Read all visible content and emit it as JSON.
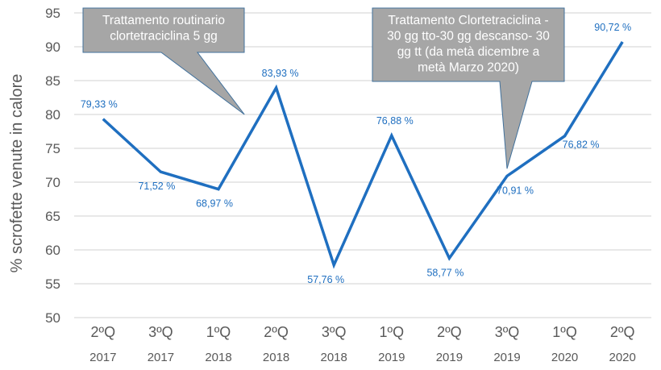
{
  "chart_data": {
    "type": "line",
    "title": "",
    "ylabel": "%  scrofette venute in calore",
    "xlabel": "",
    "ylim": [
      50,
      95
    ],
    "yticks": [
      50,
      55,
      60,
      65,
      70,
      75,
      80,
      85,
      90,
      95
    ],
    "grid": true,
    "categories": [
      {
        "q": "2ºQ",
        "year": "2017"
      },
      {
        "q": "3ºQ",
        "year": "2017"
      },
      {
        "q": "1ºQ",
        "year": "2018"
      },
      {
        "q": "2ºQ",
        "year": "2018"
      },
      {
        "q": "3ºQ",
        "year": "2018"
      },
      {
        "q": "1ºQ",
        "year": "2019"
      },
      {
        "q": "2ºQ",
        "year": "2019"
      },
      {
        "q": "3ºQ",
        "year": "2019"
      },
      {
        "q": "1ºQ",
        "year": "2020"
      },
      {
        "q": "2ºQ",
        "year": "2020"
      }
    ],
    "values": [
      79.33,
      71.52,
      68.97,
      83.93,
      57.76,
      76.88,
      58.77,
      70.91,
      76.82,
      90.72
    ],
    "data_labels": [
      "79,33 %",
      "71,52 %",
      "68,97 %",
      "83,93 %",
      "57,76 %",
      "76,88 %",
      "58,77 %",
      "70,91 %",
      "76,82 %",
      "90,72 %"
    ],
    "line_color": "#1f6fc0",
    "annotations": [
      {
        "lines": [
          "Trattamento routinario",
          "clortetraciclina 5 gg"
        ],
        "points_to_category": 2.45,
        "points_to_value": 80
      },
      {
        "lines": [
          "Trattamento Clortetraciclina -",
          "30 gg tto-30 gg descanso- 30",
          "gg tt (da metà dicembre a",
          "metà Marzo 2020)"
        ],
        "points_to_category": 7,
        "points_to_value": 72
      }
    ],
    "callout_fill": "#a6a6a6",
    "callout_border": "#41719c"
  }
}
